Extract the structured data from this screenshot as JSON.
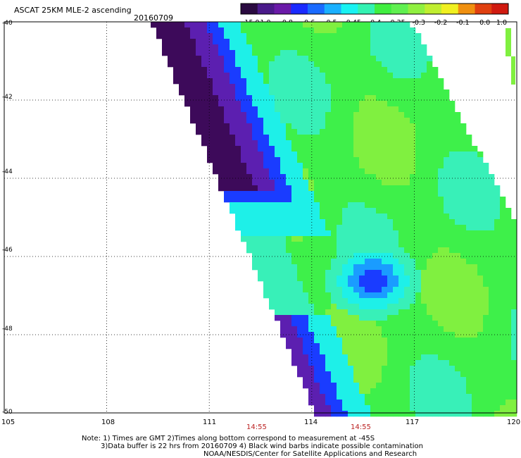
{
  "header": {
    "title": "ASCAT 25KM MLE-2 ascending",
    "date": "20160709"
  },
  "colorbar": {
    "ticks": [
      "-15.0",
      "-1.0",
      "-0.8",
      "-0.6",
      "-0.5",
      "-0.45",
      "-0.4",
      "-0.35",
      "-0.3",
      "-0.2",
      "-0.1",
      "0.0",
      "1.0"
    ],
    "colors": [
      "#2a0a40",
      "#4a1a8a",
      "#6a1aa8",
      "#1a2aff",
      "#1a6aff",
      "#1ab0ff",
      "#19f2f2",
      "#33f2b2",
      "#40ee40",
      "#60f050",
      "#90f040",
      "#c0ee30",
      "#f0f020",
      "#f09010",
      "#e04010",
      "#d01a10"
    ]
  },
  "map": {
    "lat_labels": [
      "-40",
      "-42",
      "-44",
      "-46",
      "-48",
      "-50"
    ],
    "lon_labels": [
      "105",
      "108",
      "111",
      "114",
      "117",
      "120"
    ],
    "lat_range": [
      -50,
      -40
    ],
    "lon_range": [
      105,
      120
    ],
    "swath_times": [
      "14:55",
      "14:55"
    ],
    "colors": {
      "deep": "#3d0a5a",
      "violet": "#5c1fb0",
      "blue": "#1a3cff",
      "lightblue": "#1a9cff",
      "cyan": "#1ef0e8",
      "aqua": "#38f0b8",
      "green": "#3ef04a",
      "lime": "#80f040",
      "yellowgreen": "#a8f038"
    }
  },
  "footer": {
    "line1": "Note: 1) Times are GMT 2)Times along bottom correspond to measurement at -45S",
    "line2": "3)Data buffer is 22 hrs from 20160709 4) Black wind barbs indicate possible contamination",
    "line3": "NOAA/NESDIS/Center for Satellite Applications and Research"
  }
}
